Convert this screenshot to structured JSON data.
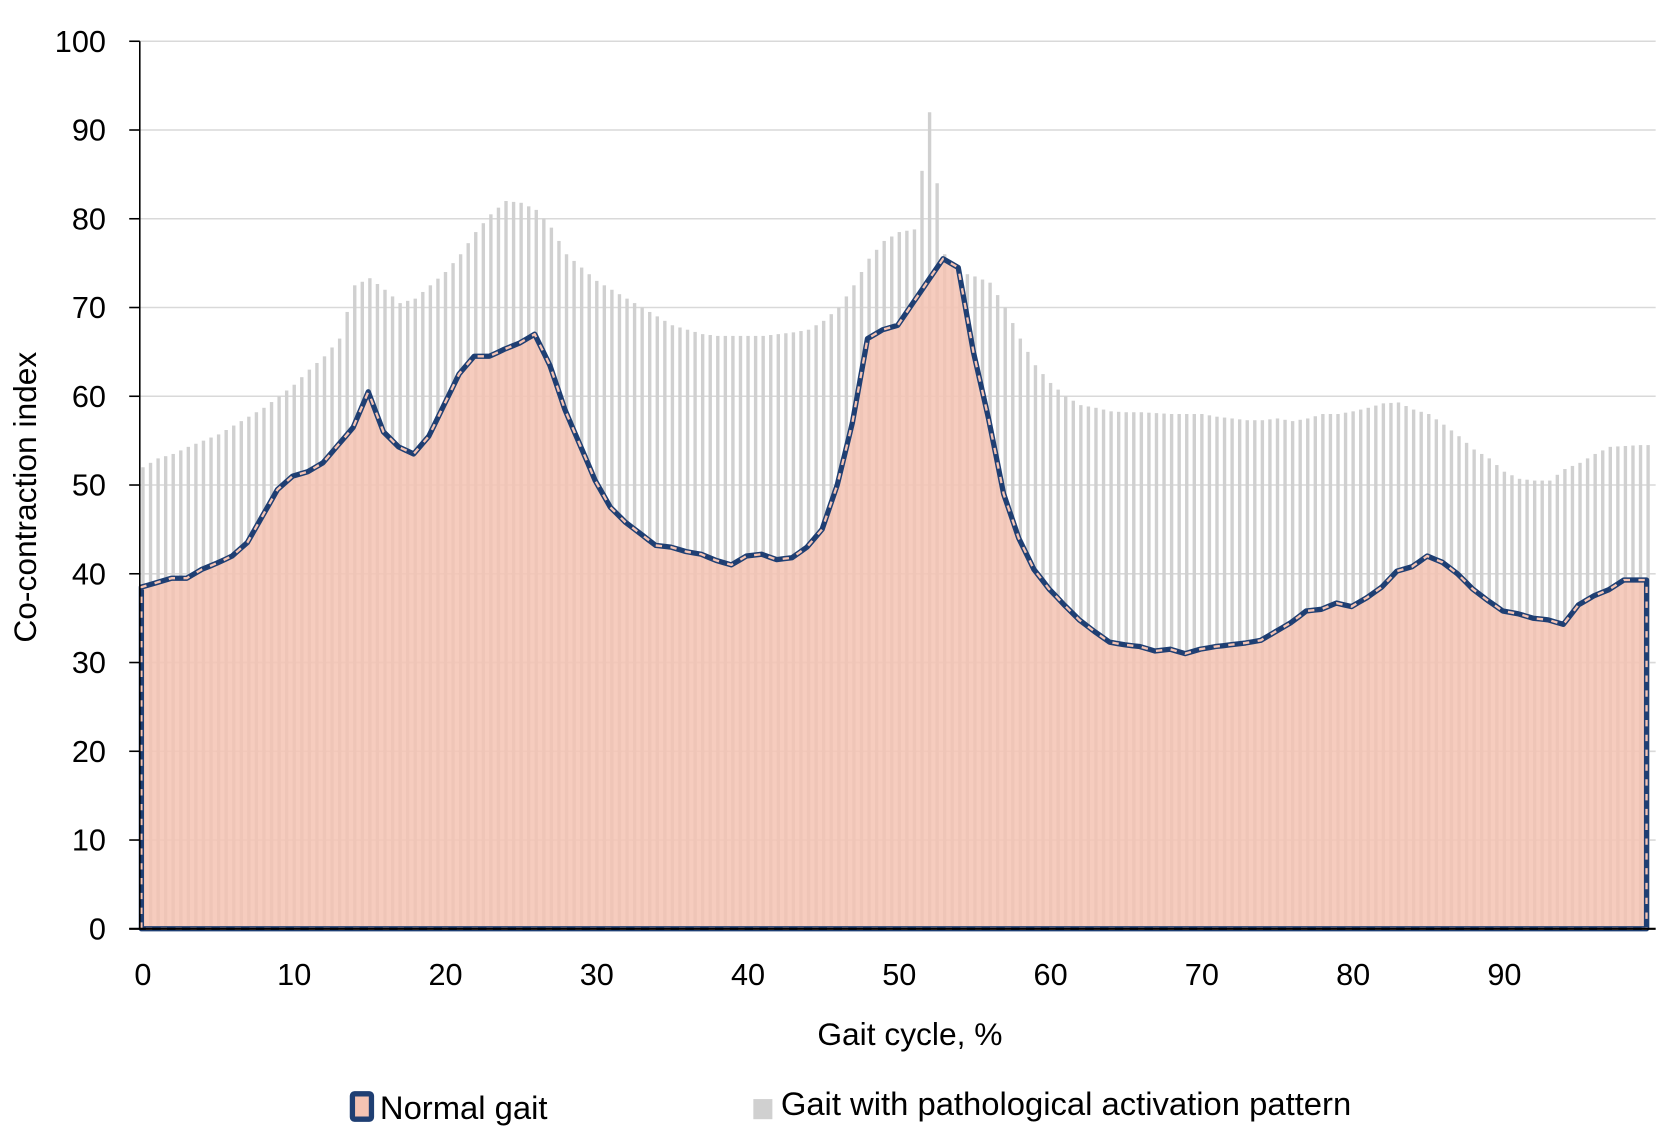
{
  "chart_data": {
    "type": "bar",
    "xlabel": "Gait cycle, %",
    "ylabel": "Co-contraction index",
    "xlim": [
      0,
      100
    ],
    "ylim": [
      0,
      100
    ],
    "grid": "horizontal",
    "legend_position": "bottom",
    "x_ticks": [
      "0",
      "10",
      "20",
      "30",
      "40",
      "50",
      "60",
      "70",
      "80",
      "90"
    ],
    "y_ticks": [
      "0",
      "10",
      "20",
      "30",
      "40",
      "50",
      "60",
      "70",
      "80",
      "90",
      "100"
    ],
    "x": [
      0,
      1,
      2,
      3,
      4,
      5,
      6,
      7,
      8,
      9,
      10,
      11,
      12,
      13,
      14,
      15,
      16,
      17,
      18,
      19,
      20,
      21,
      22,
      23,
      24,
      25,
      26,
      27,
      28,
      29,
      30,
      31,
      32,
      33,
      34,
      35,
      36,
      37,
      38,
      39,
      40,
      41,
      42,
      43,
      44,
      45,
      46,
      47,
      48,
      49,
      50,
      51,
      52,
      53,
      54,
      55,
      56,
      57,
      58,
      59,
      60,
      61,
      62,
      63,
      64,
      65,
      66,
      67,
      68,
      69,
      70,
      71,
      72,
      73,
      74,
      75,
      76,
      77,
      78,
      79,
      80,
      81,
      82,
      83,
      84,
      85,
      86,
      87,
      88,
      89,
      90,
      91,
      92,
      93,
      94,
      95,
      96,
      97,
      98,
      99
    ],
    "series": [
      {
        "name": "Normal gait",
        "style": "area",
        "fill": "#f4c3b3",
        "stroke": "#1f3f73",
        "values": [
          38.5,
          39,
          39.5,
          39.5,
          40.5,
          41.2,
          42,
          43.5,
          46.5,
          49.5,
          51,
          51.5,
          52.5,
          54.5,
          56.5,
          60.5,
          56,
          54.3,
          53.5,
          55.5,
          59,
          62.5,
          64.5,
          64.5,
          65.3,
          66,
          67,
          63.5,
          58.5,
          54.5,
          50.5,
          47.5,
          45.8,
          44.5,
          43.2,
          43,
          42.5,
          42.2,
          41.5,
          41,
          42,
          42.2,
          41.6,
          41.8,
          43,
          45,
          50,
          57,
          66.5,
          67.5,
          68,
          70.5,
          73,
          75.5,
          74.5,
          65,
          57.5,
          49,
          44,
          40.5,
          38.3,
          36.5,
          34.8,
          33.5,
          32.3,
          32,
          31.8,
          31.3,
          31.5,
          31,
          31.5,
          31.8,
          32,
          32.2,
          32.5,
          33.5,
          34.5,
          35.8,
          36,
          36.7,
          36.3,
          37.3,
          38.5,
          40.3,
          40.8,
          42,
          41.3,
          40,
          38.3,
          37,
          35.8,
          35.5,
          35,
          34.8,
          34.3,
          36.5,
          37.5,
          38.2,
          39.3,
          39.3
        ]
      },
      {
        "name": "Gait with pathological activation pattern",
        "style": "bar",
        "color": "#d0d0d0",
        "values": [
          52,
          53,
          53.5,
          54.3,
          55,
          55.7,
          56.7,
          57.7,
          58.7,
          60,
          61.3,
          63,
          64.5,
          66.5,
          72.5,
          73.3,
          72,
          70.5,
          71,
          72.5,
          74,
          76,
          78.5,
          80.5,
          82,
          81.8,
          81,
          79,
          76,
          74.5,
          73,
          72,
          71,
          70,
          69,
          68,
          67.5,
          67,
          66.8,
          66.8,
          66.8,
          66.8,
          67,
          67.2,
          67.5,
          68.5,
          70,
          72.5,
          75.5,
          77.5,
          78.5,
          78.8,
          92,
          76,
          74,
          73.5,
          72.8,
          70,
          66.5,
          63.5,
          61.5,
          60,
          59,
          58.7,
          58.3,
          58.2,
          58.2,
          58.1,
          58,
          58,
          58,
          57.7,
          57.5,
          57.3,
          57.3,
          57.5,
          57.2,
          57.5,
          58,
          58,
          58.3,
          58.7,
          59.2,
          59.3,
          58.5,
          58,
          56.8,
          55.5,
          54,
          53,
          51.5,
          50.7,
          50.5,
          50.5,
          51.8,
          52.5,
          53.5,
          54.3,
          54.4,
          54.5
        ]
      }
    ]
  }
}
